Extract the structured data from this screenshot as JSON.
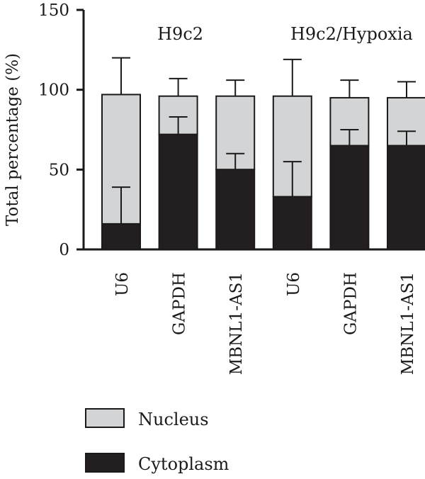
{
  "chart_data": {
    "type": "bar",
    "stacked": true,
    "error_bars": true,
    "ylabel": "Total percentage (%)",
    "xlabel": "",
    "ylim": [
      0,
      150
    ],
    "yticks": [
      0,
      50,
      100,
      150
    ],
    "categories": [
      "U6",
      "GAPDH",
      "MBNL1-AS1",
      "U6",
      "GAPDH",
      "MBNL1-AS1"
    ],
    "groups": [
      {
        "label": "H9c2",
        "category_indices": [
          0,
          1,
          2
        ]
      },
      {
        "label": "H9c2/Hypoxia",
        "category_indices": [
          3,
          4,
          5
        ]
      }
    ],
    "series": [
      {
        "name": "Cytoplasm",
        "color": "#231f20",
        "values": [
          16,
          72,
          50,
          33,
          65,
          65
        ],
        "errors": [
          23,
          11,
          10,
          22,
          10,
          9
        ]
      },
      {
        "name": "Nucleus",
        "color": "#d3d4d6",
        "values": [
          81,
          24,
          46,
          63,
          30,
          30
        ],
        "errors": [
          23,
          11,
          10,
          23,
          11,
          10
        ]
      }
    ],
    "legend": {
      "placement": "bottom-left",
      "items": [
        "Nucleus",
        "Cytoplasm"
      ]
    }
  }
}
